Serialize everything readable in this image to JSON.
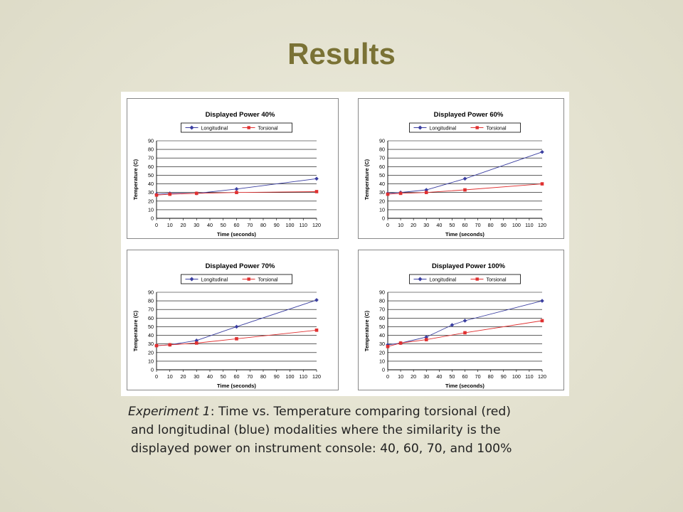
{
  "slide": {
    "title": "Results"
  },
  "caption": {
    "lead_italic": "Experiment 1",
    "line1_rest": ":  Time vs. Temperature comparing torsional (red)",
    "line2": "and longitudinal (blue) modalities where the similarity is the",
    "line3": "displayed power on instrument console:  40, 60, 70, and 100%"
  },
  "colors": {
    "longitudinal": "#3a3ea0",
    "torsional": "#e03030",
    "title": "#7a7235"
  },
  "chart_data": [
    {
      "type": "line",
      "title": "Displayed Power 40%",
      "xlabel": "Time (seconds)",
      "ylabel": "Temperature (C)",
      "x_ticks": [
        "0",
        "10",
        "20",
        "30",
        "40",
        "50",
        "60",
        "70",
        "80",
        "90",
        "100",
        "110",
        "120"
      ],
      "y_ticks": [
        "90",
        "80",
        "70",
        "60",
        "50",
        "40",
        "30",
        "20",
        "10",
        "0"
      ],
      "xlim": [
        0,
        120
      ],
      "ylim": [
        0,
        90
      ],
      "grid": true,
      "legend": "top",
      "series": [
        {
          "name": "Longitudinal",
          "marker": "diamond",
          "x": [
            0,
            10,
            30,
            60,
            120
          ],
          "y": [
            28,
            29,
            29,
            34,
            46
          ]
        },
        {
          "name": "Torsional",
          "marker": "square",
          "x": [
            0,
            10,
            30,
            60,
            120
          ],
          "y": [
            27,
            28,
            29,
            30,
            31
          ]
        }
      ]
    },
    {
      "type": "line",
      "title": "Displayed Power 60%",
      "xlabel": "Time (seconds)",
      "ylabel": "Temperature (C)",
      "x_ticks": [
        "0",
        "10",
        "20",
        "30",
        "40",
        "50",
        "60",
        "70",
        "80",
        "90",
        "100",
        "110",
        "120"
      ],
      "y_ticks": [
        "90",
        "80",
        "70",
        "60",
        "50",
        "40",
        "30",
        "20",
        "10",
        "0"
      ],
      "xlim": [
        0,
        120
      ],
      "ylim": [
        0,
        90
      ],
      "grid": true,
      "legend": "top",
      "series": [
        {
          "name": "Longitudinal",
          "marker": "diamond",
          "x": [
            0,
            10,
            30,
            60,
            120
          ],
          "y": [
            29,
            30,
            33,
            46,
            77
          ]
        },
        {
          "name": "Torsional",
          "marker": "square",
          "x": [
            0,
            10,
            30,
            60,
            120
          ],
          "y": [
            28,
            29,
            30,
            33,
            40
          ]
        }
      ]
    },
    {
      "type": "line",
      "title": "Displayed Power 70%",
      "xlabel": "Time (seconds)",
      "ylabel": "Temperature (C)",
      "x_ticks": [
        "0",
        "10",
        "20",
        "30",
        "40",
        "50",
        "60",
        "70",
        "80",
        "90",
        "100",
        "110",
        "120"
      ],
      "y_ticks": [
        "90",
        "80",
        "70",
        "60",
        "50",
        "40",
        "30",
        "20",
        "10",
        "0"
      ],
      "xlim": [
        0,
        120
      ],
      "ylim": [
        0,
        90
      ],
      "grid": true,
      "legend": "top",
      "series": [
        {
          "name": "Longitudinal",
          "marker": "diamond",
          "x": [
            0,
            10,
            30,
            60,
            120
          ],
          "y": [
            28,
            29,
            34,
            50,
            81
          ]
        },
        {
          "name": "Torsional",
          "marker": "square",
          "x": [
            0,
            10,
            30,
            60,
            120
          ],
          "y": [
            28,
            29,
            31,
            36,
            46
          ]
        }
      ]
    },
    {
      "type": "line",
      "title": "Displayed Power 100%",
      "xlabel": "Time (seconds)",
      "ylabel": "Temperature (C)",
      "x_ticks": [
        "0",
        "10",
        "20",
        "30",
        "40",
        "50",
        "60",
        "70",
        "80",
        "90",
        "100",
        "110",
        "120"
      ],
      "y_ticks": [
        "90",
        "80",
        "70",
        "60",
        "50",
        "40",
        "30",
        "20",
        "10",
        "0"
      ],
      "xlim": [
        0,
        120
      ],
      "ylim": [
        0,
        90
      ],
      "grid": true,
      "legend": "top",
      "series": [
        {
          "name": "Longitudinal",
          "marker": "diamond",
          "x": [
            0,
            10,
            30,
            50,
            60,
            120
          ],
          "y": [
            29,
            31,
            38,
            52,
            57,
            80
          ]
        },
        {
          "name": "Torsional",
          "marker": "square",
          "x": [
            0,
            10,
            30,
            60,
            120
          ],
          "y": [
            27,
            31,
            35,
            43,
            57
          ]
        }
      ]
    }
  ]
}
